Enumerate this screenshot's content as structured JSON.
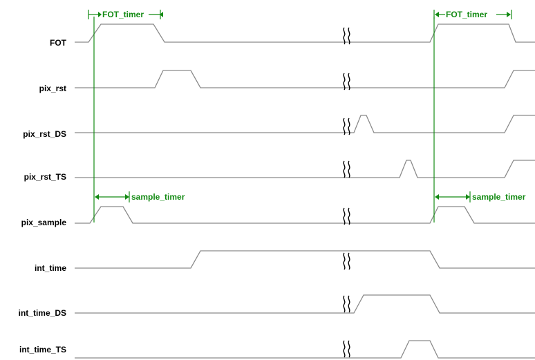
{
  "colors": {
    "waveform": "#8a8a8a",
    "annotation": "#138a13",
    "label": "#000000",
    "break": "#000000"
  },
  "signals": [
    {
      "name": "FOT"
    },
    {
      "name": "pix_rst"
    },
    {
      "name": "pix_rst_DS"
    },
    {
      "name": "pix_rst_TS"
    },
    {
      "name": "pix_sample"
    },
    {
      "name": "int_time"
    },
    {
      "name": "int_time_DS"
    },
    {
      "name": "int_time_TS"
    }
  ],
  "annotations": {
    "fot_timer_left": "FOT_timer",
    "fot_timer_right": "FOT_timer",
    "sample_timer_left": "sample_timer",
    "sample_timer_right": "sample_timer"
  }
}
